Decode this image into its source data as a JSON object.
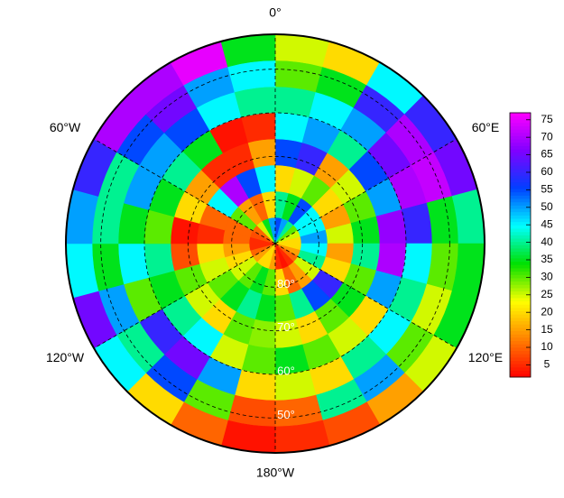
{
  "chart_data": {
    "type": "polar_heatmap",
    "lat_lim": [
      90,
      42
    ],
    "lat_bins": [
      90,
      84,
      78,
      72,
      66,
      60,
      54,
      48,
      42
    ],
    "lon_bins": [
      0,
      15,
      30,
      45,
      60,
      75,
      90,
      105,
      120,
      135,
      150,
      165,
      180,
      195,
      210,
      225,
      240,
      255,
      270,
      285,
      300,
      315,
      330,
      345,
      360
    ],
    "values": [
      [
        55,
        50,
        40,
        30,
        25,
        20,
        20,
        15,
        10,
        5,
        3,
        5,
        15,
        20,
        20,
        15,
        10,
        5,
        5,
        8,
        10,
        25,
        35,
        50
      ],
      [
        40,
        35,
        55,
        45,
        45,
        50,
        45,
        40,
        25,
        15,
        10,
        20,
        30,
        35,
        30,
        25,
        20,
        15,
        10,
        10,
        30,
        15,
        10,
        20
      ],
      [
        20,
        25,
        30,
        20,
        15,
        25,
        15,
        20,
        60,
        55,
        40,
        30,
        35,
        40,
        35,
        30,
        25,
        20,
        5,
        10,
        45,
        70,
        55,
        45
      ],
      [
        55,
        60,
        15,
        25,
        30,
        35,
        40,
        30,
        35,
        30,
        20,
        25,
        28,
        30,
        20,
        25,
        30,
        8,
        3,
        20,
        15,
        5,
        5,
        15
      ],
      [
        45,
        50,
        40,
        55,
        50,
        68,
        70,
        50,
        20,
        25,
        30,
        35,
        30,
        25,
        45,
        40,
        35,
        40,
        30,
        35,
        40,
        35,
        3,
        5
      ],
      [
        40,
        45,
        50,
        65,
        70,
        60,
        45,
        40,
        45,
        40,
        20,
        25,
        20,
        50,
        65,
        60,
        30,
        45,
        35,
        50,
        50,
        55,
        45,
        40
      ],
      [
        30,
        35,
        60,
        70,
        72,
        35,
        30,
        25,
        30,
        50,
        40,
        10,
        8,
        30,
        55,
        40,
        50,
        35,
        40,
        40,
        55,
        65,
        50,
        45
      ],
      [
        25,
        20,
        45,
        60,
        65,
        40,
        35,
        35,
        25,
        15,
        8,
        5,
        3,
        10,
        20,
        45,
        65,
        45,
        50,
        60,
        70,
        70,
        75,
        35
      ]
    ],
    "clim": [
      1.5,
      77
    ],
    "colormap": [
      "#ff0000",
      "#ff8000",
      "#ffff00",
      "#00e000",
      "#00ffff",
      "#0040ff",
      "#8000ff",
      "#ff00ff"
    ],
    "colorbar_ticks": [
      5,
      10,
      15,
      20,
      25,
      30,
      35,
      40,
      45,
      50,
      55,
      60,
      65,
      70,
      75
    ],
    "meridians": [
      {
        "value": 0,
        "label": "0°"
      },
      {
        "value": 60,
        "label": "60°E"
      },
      {
        "value": 120,
        "label": "120°E"
      },
      {
        "value": 180,
        "label": "180°W"
      },
      {
        "value": -120,
        "label": "120°W"
      },
      {
        "value": -60,
        "label": "60°W"
      }
    ],
    "parallels": [
      {
        "value": 80,
        "label": "80°"
      },
      {
        "value": 70,
        "label": "70°"
      },
      {
        "value": 60,
        "label": "60°"
      },
      {
        "value": 50,
        "label": "50°"
      }
    ]
  }
}
